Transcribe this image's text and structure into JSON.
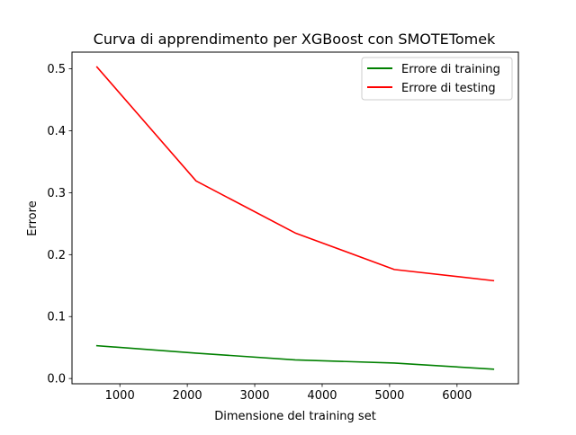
{
  "chart_data": {
    "type": "line",
    "title": "Curva di apprendimento per XGBoost con SMOTETomek",
    "xlabel": "Dimensione del training set",
    "ylabel": "Errore",
    "xlim": [
      290,
      6910
    ],
    "ylim": [
      -0.0085,
      0.527
    ],
    "xticks": [
      1000,
      2000,
      3000,
      4000,
      5000,
      6000
    ],
    "yticks": [
      0.0,
      0.1,
      0.2,
      0.3,
      0.4,
      0.5
    ],
    "xtick_labels": [
      "1000",
      "2000",
      "3000",
      "4000",
      "5000",
      "6000"
    ],
    "ytick_labels": [
      "0.0",
      "0.1",
      "0.2",
      "0.3",
      "0.4",
      "0.5"
    ],
    "x": [
      660,
      2130,
      3600,
      5070,
      6540
    ],
    "series": [
      {
        "name": "Errore di training",
        "color": "#008000",
        "values": [
          0.053,
          0.041,
          0.03,
          0.025,
          0.015
        ]
      },
      {
        "name": "Errore di testing",
        "color": "#ff0000",
        "values": [
          0.503,
          0.319,
          0.235,
          0.176,
          0.158
        ]
      }
    ],
    "legend_position": "top-right",
    "grid": false
  }
}
